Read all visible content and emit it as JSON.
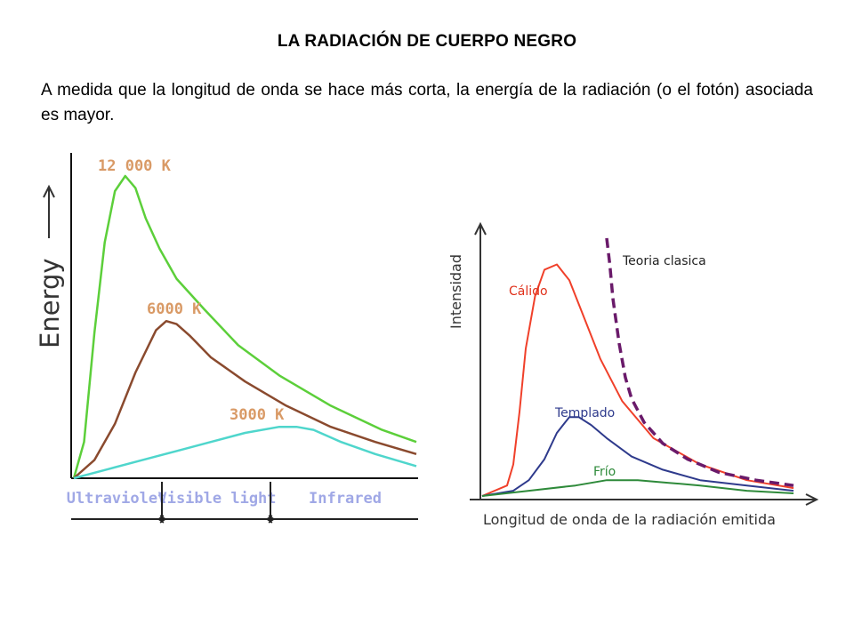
{
  "page": {
    "title": "LA RADIACIÓN DE CUERPO NEGRO",
    "intro": "A medida que la longitud de onda se hace más corta, la energía de la radiación (o el fotón) asociada es mayor."
  },
  "chart_data": [
    {
      "type": "line",
      "ylabel": "Energy",
      "bands": [
        "Ultraviolet",
        "Visible light",
        "Infrared"
      ],
      "band_colors": [
        "#a0a8e6",
        "#a0a8e6",
        "#a0a8e6"
      ],
      "grid": false,
      "series": [
        {
          "name": "12 000 K",
          "color": "#5ccf3a",
          "label_color": "#d99a66",
          "x": [
            0,
            3,
            6,
            9,
            12,
            15,
            18,
            21,
            25,
            30,
            38,
            48,
            60,
            75,
            90,
            100
          ],
          "y": [
            0,
            12,
            48,
            78,
            95,
            100,
            96,
            86,
            76,
            66,
            56,
            44,
            34,
            24,
            16,
            12
          ]
        },
        {
          "name": "6000 K",
          "color": "#8a4a2e",
          "label_color": "#d99a66",
          "x": [
            0,
            6,
            12,
            18,
            24,
            27,
            30,
            34,
            40,
            50,
            62,
            75,
            88,
            100
          ],
          "y": [
            0,
            6,
            18,
            35,
            49,
            52,
            51,
            47,
            40,
            32,
            24,
            17,
            12,
            8
          ]
        },
        {
          "name": "3000 K",
          "color": "#4fd6cc",
          "label_color": "#d99a66",
          "x": [
            0,
            10,
            20,
            30,
            40,
            50,
            60,
            65,
            70,
            78,
            88,
            100
          ],
          "y": [
            0,
            3,
            6,
            9,
            12,
            15,
            17,
            17,
            16,
            12,
            8,
            4
          ]
        }
      ]
    },
    {
      "type": "line",
      "xlabel": "Longitud de onda de la radiación emitida",
      "ylabel": "Intensidad",
      "grid": false,
      "series": [
        {
          "name": "Cálido",
          "color": "#f0402a",
          "label_color": "#e0301a",
          "x": [
            0,
            8,
            10,
            12,
            14,
            17,
            20,
            24,
            28,
            32,
            38,
            45,
            55,
            70,
            85,
            100
          ],
          "y": [
            0,
            4,
            12,
            32,
            56,
            76,
            86,
            88,
            82,
            70,
            52,
            36,
            22,
            12,
            6,
            3
          ]
        },
        {
          "name": "Templado",
          "color": "#2e3a8c",
          "label_color": "#2e3a8c",
          "x": [
            0,
            10,
            15,
            20,
            24,
            28,
            31,
            35,
            40,
            48,
            58,
            70,
            85,
            100
          ],
          "y": [
            0,
            2,
            6,
            14,
            24,
            30,
            30,
            27,
            22,
            15,
            10,
            6,
            4,
            2
          ]
        },
        {
          "name": "Frío",
          "color": "#2e8a3a",
          "label_color": "#2e8a3a",
          "x": [
            0,
            15,
            30,
            40,
            50,
            60,
            70,
            85,
            100
          ],
          "y": [
            0,
            2,
            4,
            6,
            6,
            5,
            4,
            2,
            1
          ]
        },
        {
          "name": "Teoria clasica",
          "color": "#6a1a6a",
          "label_color": "#222222",
          "x": [
            40,
            41,
            42,
            44,
            46,
            48,
            52,
            58,
            66,
            76,
            88,
            100
          ],
          "y": [
            98,
            88,
            75,
            58,
            45,
            37,
            28,
            20,
            14,
            9,
            6,
            4
          ]
        }
      ]
    }
  ]
}
